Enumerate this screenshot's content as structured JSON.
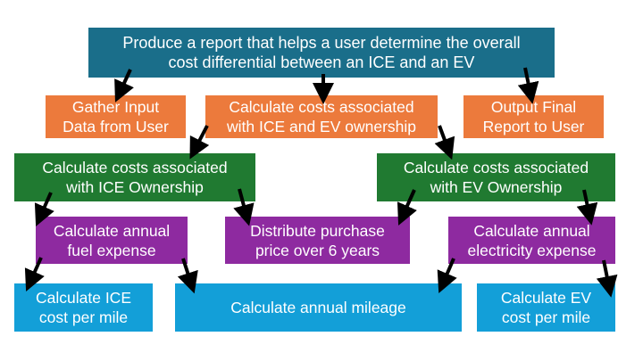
{
  "nodes": {
    "root": "Produce a report that helps a user determine the overall\ncost differential between an ICE and an EV",
    "gather": "Gather Input\nData from User",
    "calc_costs": "Calculate costs associated\nwith ICE and EV ownership",
    "output": "Output Final\nReport to User",
    "ice_ownership": "Calculate costs associated\nwith ICE Ownership",
    "ev_ownership": "Calculate costs associated\nwith EV Ownership",
    "fuel": "Calculate annual\nfuel expense",
    "distribute": "Distribute purchase\nprice over 6 years",
    "electricity": "Calculate annual\nelectricity expense",
    "ice_per_mile": "Calculate ICE\ncost per mile",
    "mileage": "Calculate annual mileage",
    "ev_per_mile": "Calculate EV\ncost per mile"
  },
  "colors": {
    "root": "#1a6e8a",
    "level1": "#ec7a3c",
    "level2": "#207a31",
    "level3": "#8e2aa0",
    "level4": "#139fd8",
    "arrow": "#000000"
  }
}
